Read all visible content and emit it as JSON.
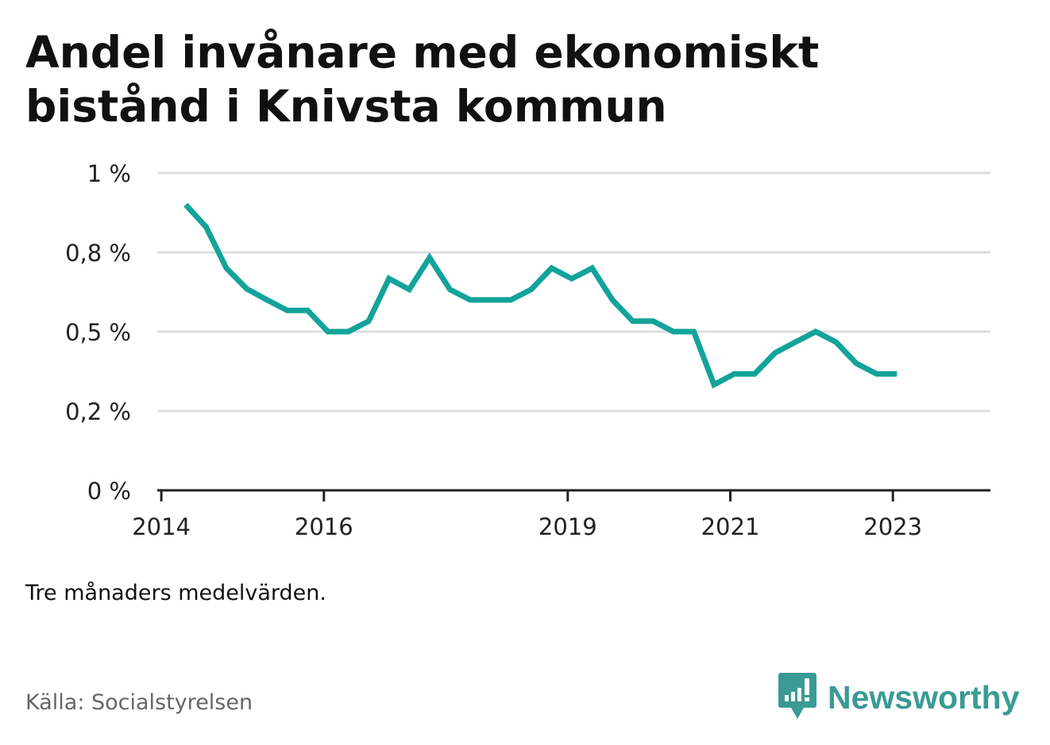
{
  "title": "Andel invånare med ekonomiskt bistånd i Knivsta kommun",
  "note": "Tre månaders medelvärden.",
  "source": "Källa: Socialstyrelsen",
  "brand": {
    "name": "Newsworthy",
    "icon": "newsworthy-logo-icon",
    "color": "#3a9a94"
  },
  "colors": {
    "line": "#12a39a",
    "grid": "#dddddd",
    "axis": "#222222"
  },
  "chart_data": {
    "type": "line",
    "title": "Andel invånare med ekonomiskt bistånd i Knivsta kommun",
    "xlabel": "",
    "ylabel": "",
    "ylim": [
      0,
      1
    ],
    "grid": true,
    "x_ticks": [
      {
        "label": "2014",
        "value": 2014.0
      },
      {
        "label": "2016",
        "value": 2016.0
      },
      {
        "label": "2019",
        "value": 2019.0
      },
      {
        "label": "2021",
        "value": 2021.0
      },
      {
        "label": "2023",
        "value": 2023.0
      }
    ],
    "y_ticks": [
      {
        "label": "0 %",
        "value": 0
      },
      {
        "label": "0,2 %",
        "value": 0.25
      },
      {
        "label": "0,5 %",
        "value": 0.5
      },
      {
        "label": "0,8 %",
        "value": 0.75
      },
      {
        "label": "1 %",
        "value": 1
      }
    ],
    "series": [
      {
        "x": [
          2014.3,
          2014.55,
          2014.8,
          2015.05,
          2015.3,
          2015.55,
          2015.8,
          2016.05,
          2016.3,
          2016.55,
          2016.8,
          2017.05,
          2017.3,
          2017.55,
          2017.8,
          2018.05,
          2018.3,
          2018.55,
          2018.8,
          2019.05,
          2019.3,
          2019.55,
          2019.8,
          2020.05,
          2020.3,
          2020.55,
          2020.8,
          2021.05,
          2021.3,
          2021.55,
          2021.8,
          2022.05,
          2022.3,
          2022.55,
          2022.8,
          2023.05
        ],
        "values": [
          0.9,
          0.83,
          0.7,
          0.635,
          0.6,
          0.567,
          0.567,
          0.5,
          0.5,
          0.533,
          0.667,
          0.633,
          0.733,
          0.633,
          0.6,
          0.6,
          0.6,
          0.633,
          0.7,
          0.667,
          0.7,
          0.6,
          0.533,
          0.533,
          0.5,
          0.5,
          0.333,
          0.367,
          0.367,
          0.433,
          0.467,
          0.5,
          0.467,
          0.4,
          0.367,
          0.367
        ]
      }
    ]
  }
}
